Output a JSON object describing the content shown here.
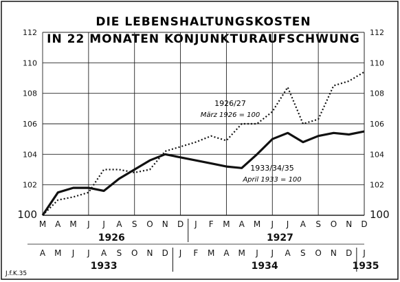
{
  "chart_data": {
    "type": "line",
    "title_line1": "DIE LEBENSHALTUNGSKOSTEN",
    "title_line2": "IN 22 MONATEN KONJUNKTURAUFSCHWUNG",
    "y_ticks": [
      "100",
      "102",
      "104",
      "106",
      "108",
      "110",
      "112"
    ],
    "ylim": [
      100,
      112
    ],
    "grid": true,
    "axis_top": {
      "months": [
        "M",
        "A",
        "M",
        "J",
        "J",
        "A",
        "S",
        "O",
        "N",
        "D",
        "J",
        "F",
        "M",
        "A",
        "M",
        "J",
        "J",
        "A",
        "S",
        "O",
        "N",
        "D"
      ],
      "years": [
        "1926",
        "1927"
      ]
    },
    "axis_bottom": {
      "months": [
        "A",
        "M",
        "J",
        "J",
        "A",
        "S",
        "O",
        "N",
        "D",
        "J",
        "F",
        "M",
        "A",
        "M",
        "J",
        "J",
        "A",
        "S",
        "O",
        "N",
        "D",
        "J"
      ],
      "years": [
        "1933",
        "1934",
        "1935"
      ]
    },
    "series": [
      {
        "name": "1926/27",
        "sublabel": "März 1926 = 100",
        "style": "dotted",
        "values": [
          100.0,
          101.0,
          101.2,
          101.5,
          103.0,
          103.0,
          102.8,
          103.0,
          104.2,
          104.5,
          104.8,
          105.2,
          104.9,
          106.0,
          106.0,
          106.8,
          108.4,
          106.0,
          106.3,
          108.5,
          108.8,
          109.4
        ]
      },
      {
        "name": "1933/34/35",
        "sublabel": "April 1933 = 100",
        "style": "solid",
        "values": [
          100.0,
          101.5,
          101.8,
          101.8,
          101.6,
          102.4,
          103.0,
          103.6,
          104.0,
          103.8,
          103.6,
          103.4,
          103.2,
          103.1,
          104.0,
          105.0,
          105.4,
          104.8,
          105.2,
          105.4,
          105.3,
          105.5
        ]
      }
    ]
  },
  "signature": "J.f.K.35",
  "colors": {
    "ink": "#111111",
    "grid": "#222222",
    "background": "#ffffff"
  }
}
